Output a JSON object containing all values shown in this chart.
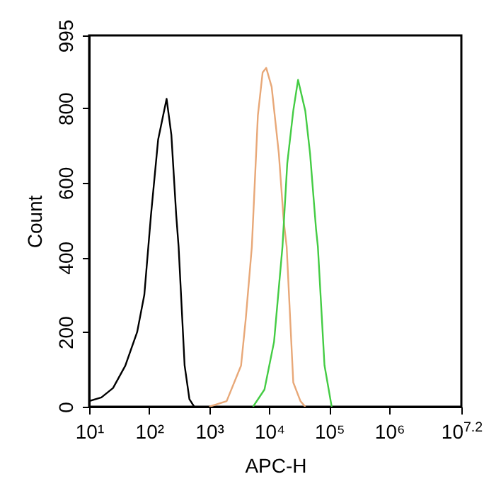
{
  "chart_data": {
    "type": "line",
    "xlabel": "APC-H",
    "ylabel": "Count",
    "log": "x",
    "xlim": [
      10,
      15848932
    ],
    "ylim": [
      0,
      995
    ],
    "xticks": [
      {
        "value": 10,
        "label": "10¹"
      },
      {
        "value": 100,
        "label": "10²"
      },
      {
        "value": 1000,
        "label": "10³"
      },
      {
        "value": 10000,
        "label": "10⁴"
      },
      {
        "value": 100000,
        "label": "10⁵"
      },
      {
        "value": 1000000,
        "label": "10⁶"
      },
      {
        "value": 15848932,
        "label": "10$^{7.2}$"
      }
    ],
    "yticks": [
      0,
      200,
      400,
      600,
      800,
      995
    ],
    "grid": false,
    "marker": "none",
    "line_style": "solid",
    "series": [
      {
        "color": "#000000",
        "x": [
          10,
          16,
          25,
          40,
          63,
          83,
          107,
          141,
          195,
          234,
          282,
          309,
          389,
          468,
          562
        ],
        "values": [
          15,
          25,
          50,
          110,
          200,
          300,
          513,
          716,
          825,
          729,
          513,
          429,
          111,
          20,
          0
        ]
      },
      {
        "color": "#e8a878",
        "x": [
          1000,
          1950,
          3390,
          4070,
          5130,
          6460,
          7760,
          8910,
          10960,
          14450,
          17380,
          19500,
          25120,
          33110,
          39810
        ],
        "values": [
          0,
          15,
          110,
          237,
          429,
          780,
          896,
          908,
          857,
          678,
          499,
          429,
          65,
          15,
          0
        ]
      },
      {
        "color": "#44cc44",
        "x": [
          5370,
          8320,
          12020,
          16600,
          19950,
          25120,
          30200,
          39810,
          47860,
          60260,
          64570,
          83180,
          109600
        ],
        "values": [
          0,
          46,
          174,
          429,
          652,
          793,
          876,
          793,
          678,
          475,
          429,
          111,
          0
        ]
      }
    ]
  }
}
